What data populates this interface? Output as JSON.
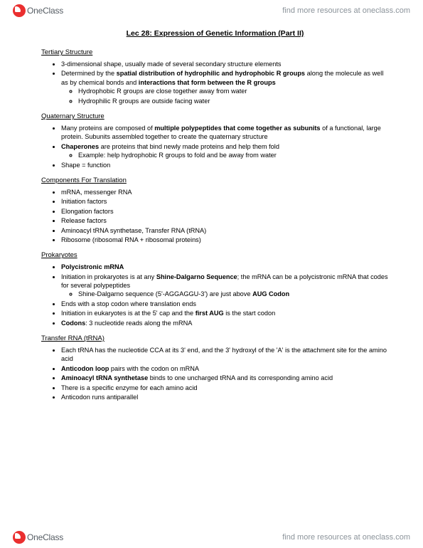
{
  "brand": {
    "name": "OneClass",
    "tagline": "find more resources at oneclass.com"
  },
  "title": "Lec 28: Expression of Genetic Information (Part II)",
  "sections": [
    {
      "heading": "Tertiary Structure",
      "bullets": [
        {
          "html": "3-dimensional shape, usually made of several secondary structure elements"
        },
        {
          "html": "Determined by the <b>spatial distribution of hydrophilic and hydrophobic R groups</b> along the molecule as well as by chemical bonds and <b>interactions that form between the R groups</b>",
          "sub": [
            {
              "html": "Hydrophobic R groups are close together away from water"
            },
            {
              "html": "Hydrophilic R groups are outside facing water"
            }
          ]
        }
      ]
    },
    {
      "heading": "Quaternary Structure",
      "bullets": [
        {
          "html": "Many proteins are composed of <b>multiple polypeptides that come together as subunits</b> of a functional, large protein. Subunits assembled together to create the quaternary structure"
        },
        {
          "html": "<b>Chaperones</b> are proteins that bind newly made proteins and help them fold",
          "sub": [
            {
              "html": "Example: help hydrophobic R groups to fold and be away from water"
            }
          ]
        },
        {
          "html": "Shape = function"
        }
      ]
    },
    {
      "heading": "Components For Translation",
      "bullets": [
        {
          "html": "mRNA, messenger RNA"
        },
        {
          "html": "Initiation factors"
        },
        {
          "html": "Elongation factors"
        },
        {
          "html": "Release factors"
        },
        {
          "html": "Aminoacyl tRNA synthetase, Transfer RNA (tRNA)"
        },
        {
          "html": "Ribosome (ribosomal RNA + ribosomal proteins)"
        }
      ]
    },
    {
      "heading": "Prokaryotes",
      "bullets": [
        {
          "html": "<b>Polycistronic mRNA</b>"
        },
        {
          "html": "Initiation in prokaryotes is at any <b>Shine-Dalgarno Sequence</b>; the mRNA can be a polycistronic mRNA that codes for several polypeptides",
          "sub": [
            {
              "html": "Shine-Dalgarno sequence (5'-AGGAGGU-3') are just above <b>AUG Codon</b>"
            }
          ]
        },
        {
          "html": "Ends with a stop codon where translation ends"
        },
        {
          "html": "Initiation in eukaryotes is at the 5' cap and the <b>first AUG</b> is the start codon"
        },
        {
          "html": "<b>Codons</b>: 3 nucleotide reads along the mRNA"
        }
      ]
    },
    {
      "heading": "Transfer RNA (tRNA)",
      "bullets": [
        {
          "html": "Each tRNA has the nucleotide CCA at its 3' end, and the 3' hydroxyl of the 'A' is the attachment site for the amino acid"
        },
        {
          "html": "<b>Anticodon loop</b> pairs with the codon on mRNA"
        },
        {
          "html": "<b>Aminoacyl tRNA synthetase</b> binds to one uncharged tRNA and its corresponding amino acid"
        },
        {
          "html": "There is a specific enzyme for each amino acid"
        },
        {
          "html": "Anticodon runs antiparallel"
        }
      ]
    }
  ]
}
